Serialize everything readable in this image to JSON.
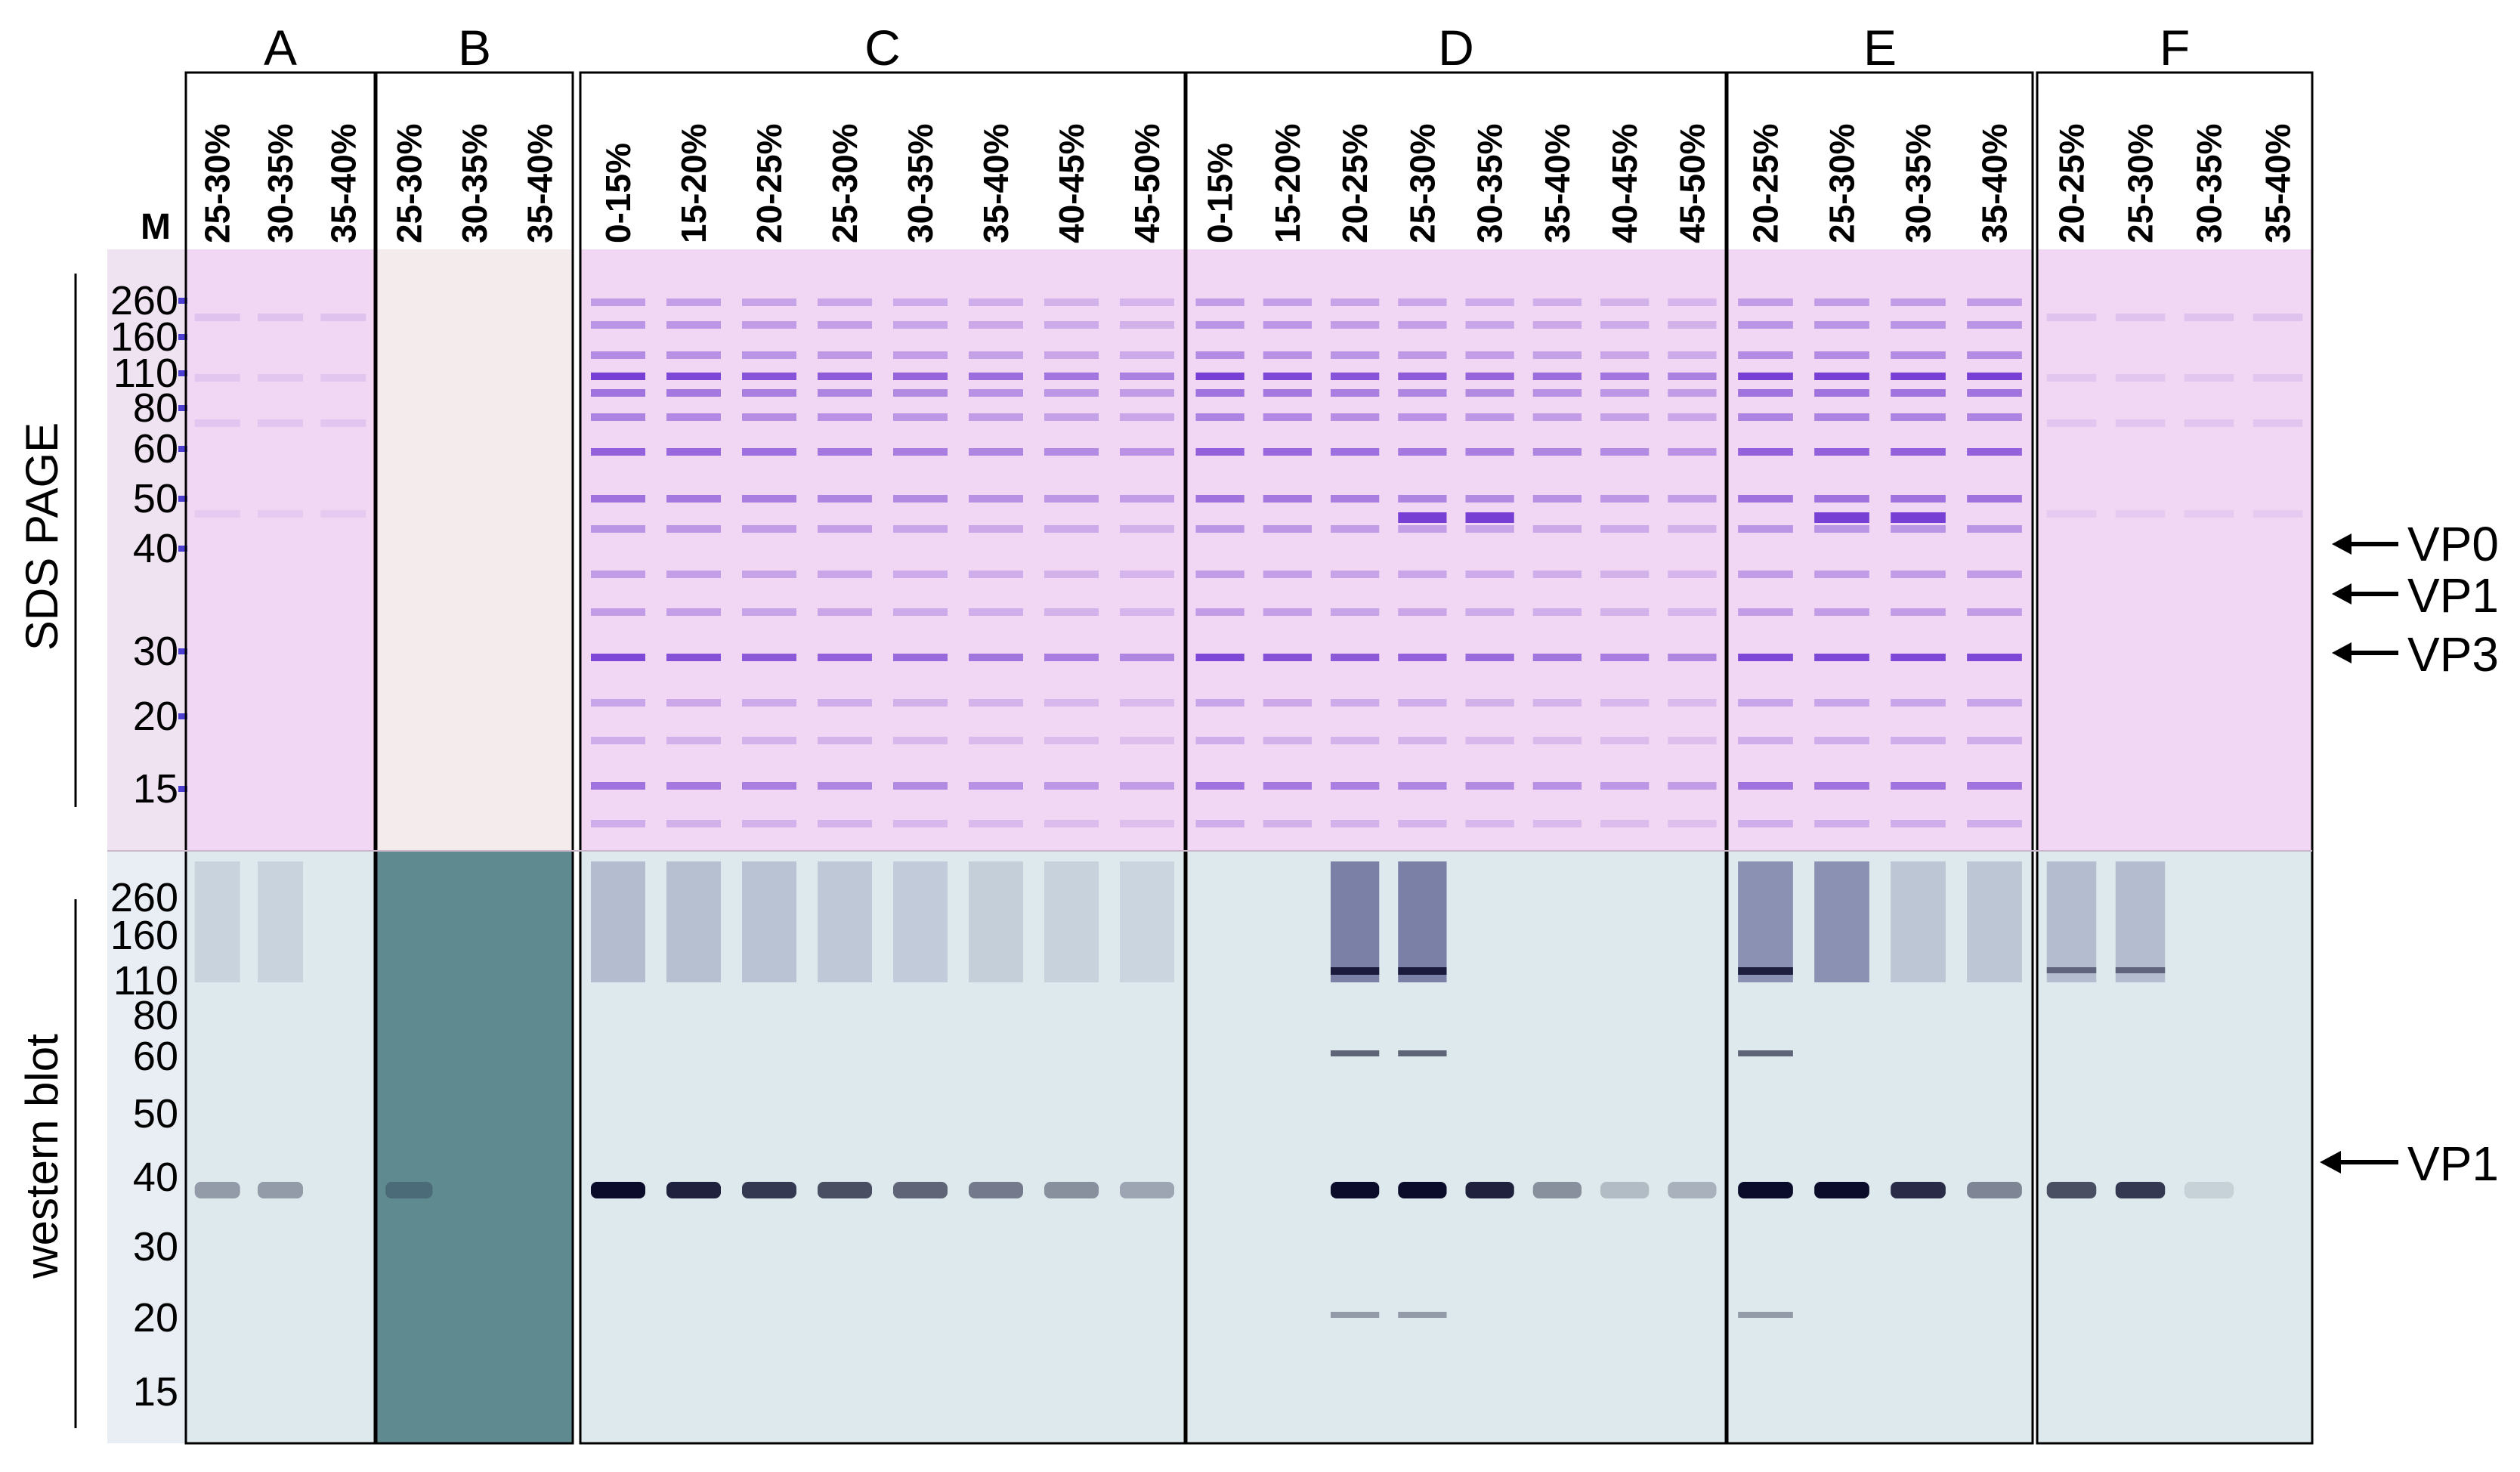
{
  "marker_label": "M",
  "side_labels": {
    "top": "SDS PAGE",
    "bottom": "western blot"
  },
  "mw_top": [
    "260",
    "160",
    "110",
    "80",
    "60",
    "50",
    "40",
    "30",
    "20",
    "15"
  ],
  "mw_bottom": [
    "260",
    "160",
    "110",
    "80",
    "60",
    "50",
    "40",
    "30",
    "20",
    "15"
  ],
  "groups": [
    {
      "name": "A",
      "lanes": [
        "25-30%",
        "30-35%",
        "35-40%"
      ]
    },
    {
      "name": "B",
      "lanes": [
        "25-30%",
        "30-35%",
        "35-40%"
      ]
    },
    {
      "name": "C",
      "lanes": [
        "0-15%",
        "15-20%",
        "20-25%",
        "25-30%",
        "30-35%",
        "35-40%",
        "40-45%",
        "45-50%"
      ]
    },
    {
      "name": "D",
      "lanes": [
        "0-15%",
        "15-20%",
        "20-25%",
        "25-30%",
        "30-35%",
        "35-40%",
        "40-45%",
        "45-50%"
      ]
    },
    {
      "name": "E",
      "lanes": [
        "20-25%",
        "25-30%",
        "30-35%",
        "35-40%"
      ]
    },
    {
      "name": "F",
      "lanes": [
        "20-25%",
        "25-30%",
        "30-35%",
        "35-40%"
      ]
    }
  ],
  "annotations_top": [
    "VP0",
    "VP1",
    "VP3"
  ],
  "annotations_bottom": [
    "VP1"
  ],
  "colors": {
    "sds_gel": "#f1d7f3",
    "blot": "#dde9ec",
    "blot_b": "#5f8b90",
    "band_sds": "#6a2fd0",
    "band_blot": "#0b0b2a"
  }
}
